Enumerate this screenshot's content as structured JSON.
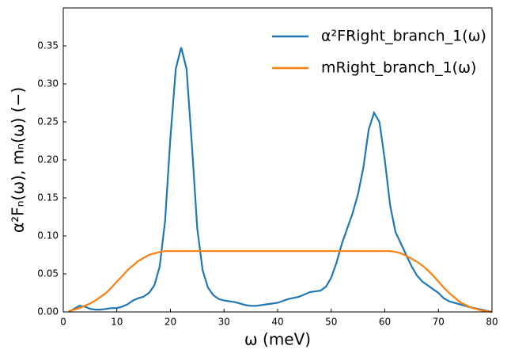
{
  "chart_data": {
    "type": "line",
    "xlabel": "ω (meV)",
    "ylabel": "α²Fₙ(ω),  mₙ(ω) (−)",
    "x": [
      1,
      2,
      3,
      4,
      5,
      6,
      7,
      8,
      9,
      10,
      11,
      12,
      13,
      14,
      15,
      16,
      17,
      18,
      19,
      20,
      21,
      22,
      23,
      24,
      25,
      26,
      27,
      28,
      29,
      30,
      32,
      34,
      35,
      36,
      38,
      40,
      42,
      44,
      46,
      48,
      49,
      50,
      51,
      52,
      53,
      54,
      55,
      56,
      57,
      58,
      59,
      60,
      61,
      62,
      63,
      64,
      65,
      66,
      67,
      68,
      69,
      70,
      71,
      72,
      74,
      76,
      78,
      80
    ],
    "series": [
      {
        "name": "α²FRight_branch_1(ω)",
        "color": "#1f77b4",
        "values": [
          0.0,
          0.004,
          0.008,
          0.007,
          0.004,
          0.003,
          0.003,
          0.004,
          0.005,
          0.005,
          0.007,
          0.01,
          0.015,
          0.018,
          0.02,
          0.025,
          0.035,
          0.06,
          0.12,
          0.23,
          0.32,
          0.348,
          0.32,
          0.22,
          0.11,
          0.055,
          0.032,
          0.022,
          0.017,
          0.015,
          0.013,
          0.009,
          0.008,
          0.008,
          0.01,
          0.012,
          0.017,
          0.02,
          0.026,
          0.028,
          0.033,
          0.045,
          0.065,
          0.09,
          0.11,
          0.13,
          0.155,
          0.19,
          0.24,
          0.262,
          0.25,
          0.2,
          0.14,
          0.105,
          0.09,
          0.075,
          0.06,
          0.048,
          0.04,
          0.035,
          0.03,
          0.025,
          0.018,
          0.014,
          0.01,
          0.006,
          0.003,
          0.0
        ]
      },
      {
        "name": "mRight_branch_1(ω)",
        "color": "#ff7f0e",
        "values": [
          0.001,
          0.003,
          0.005,
          0.008,
          0.011,
          0.015,
          0.02,
          0.025,
          0.032,
          0.04,
          0.047,
          0.055,
          0.061,
          0.067,
          0.071,
          0.075,
          0.077,
          0.079,
          0.08,
          0.08,
          0.08,
          0.08,
          0.08,
          0.08,
          0.08,
          0.08,
          0.08,
          0.08,
          0.08,
          0.08,
          0.08,
          0.08,
          0.08,
          0.08,
          0.08,
          0.08,
          0.08,
          0.08,
          0.08,
          0.08,
          0.08,
          0.08,
          0.08,
          0.08,
          0.08,
          0.08,
          0.08,
          0.08,
          0.08,
          0.08,
          0.08,
          0.08,
          0.08,
          0.079,
          0.077,
          0.074,
          0.07,
          0.066,
          0.061,
          0.055,
          0.048,
          0.04,
          0.032,
          0.025,
          0.013,
          0.006,
          0.002,
          0.0
        ]
      }
    ],
    "xlim": [
      0,
      80
    ],
    "xticks": [
      0,
      10,
      20,
      30,
      40,
      50,
      60,
      70,
      80
    ],
    "ylim": [
      0,
      0.4
    ],
    "yticks": [
      {
        "value": 0,
        "label": "0.00"
      },
      {
        "value": 0.05,
        "label": "0.05"
      },
      {
        "value": 0.1,
        "label": "0.10"
      },
      {
        "value": 0.15,
        "label": "0.15"
      },
      {
        "value": 0.2,
        "label": "0.20"
      },
      {
        "value": 0.25,
        "label": "0.25"
      },
      {
        "value": 0.3,
        "label": "0.30"
      },
      {
        "value": 0.35,
        "label": "0.35"
      }
    ],
    "legend": "upper right",
    "grid": false
  }
}
